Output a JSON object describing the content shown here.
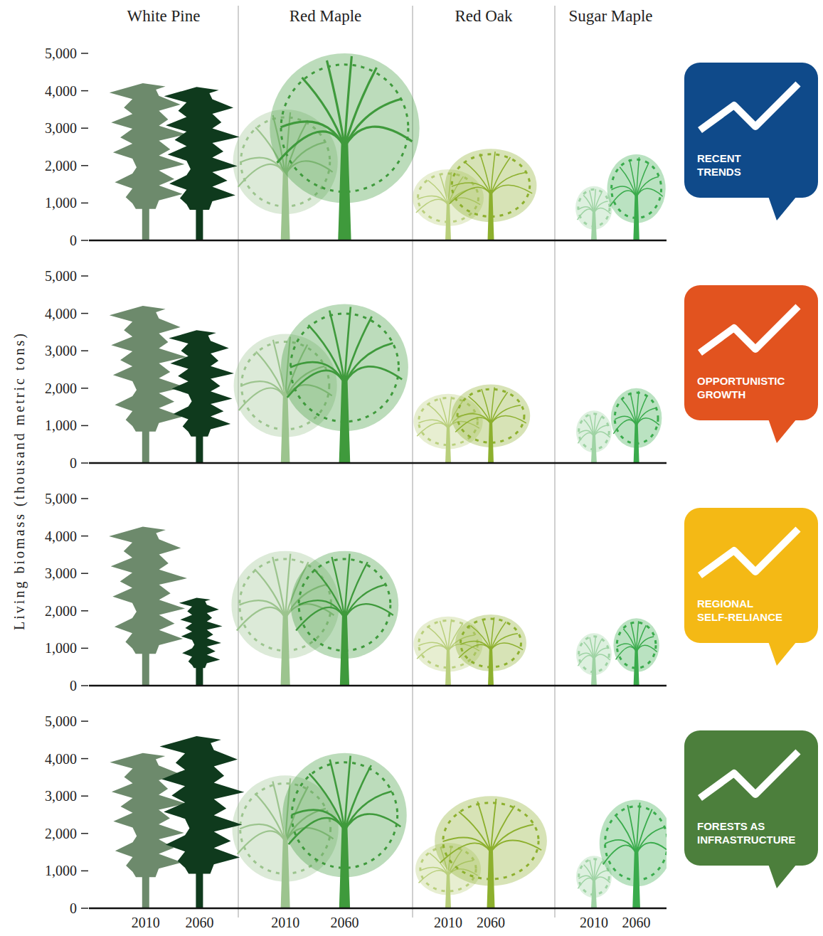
{
  "chart_data": [
    {
      "type": "pictograph",
      "title": "RECENT TRENDS",
      "y_label": "Living biomass (thousand metric tons)",
      "categories": [
        "White Pine",
        "Red Maple",
        "Red Oak",
        "Sugar Maple"
      ],
      "series": [
        {
          "values": [
            4200,
            3500,
            1900,
            1450
          ],
          "colors": [
            "#6d8a6c",
            "#9cc48e",
            "#b9cf7c",
            "#9fd3a4"
          ]
        },
        {
          "values": [
            4100,
            5000,
            2450,
            2300
          ],
          "colors": [
            "#0f3a1d",
            "#3f9a3c",
            "#8db02e",
            "#3aab4c"
          ]
        }
      ],
      "ylim": [
        0,
        5000
      ],
      "yticks": [
        0,
        {
          "value": 1000,
          "label": "1,000"
        },
        {
          "value": 2000,
          "label": "2,000"
        },
        {
          "value": 3000,
          "label": "3,000"
        },
        {
          "value": 4000,
          "label": "4,000"
        },
        {
          "value": 5000,
          "label": "5,000"
        }
      ]
    },
    {
      "type": "pictograph",
      "title": "OPPORTUNISTIC GROWTH",
      "categories": [
        null,
        null,
        null,
        null
      ],
      "series": [
        {
          "values": [
            4200,
            3450,
            1850,
            1400
          ],
          "colors": [
            "#6d8a6c",
            "#9cc48e",
            "#b9cf7c",
            "#9fd3a4"
          ]
        },
        {
          "values": [
            3550,
            4250,
            2100,
            2000
          ],
          "colors": [
            "#0f3a1d",
            "#3f9a3c",
            "#8db02e",
            "#3aab4c"
          ]
        }
      ],
      "ylim": [
        0,
        5000
      ],
      "yticks": [
        0,
        {
          "value": 1000,
          "label": "1,000"
        },
        {
          "value": 2000,
          "label": "2,000"
        },
        {
          "value": 3000,
          "label": "3,000"
        },
        {
          "value": 4000,
          "label": "4,000"
        },
        {
          "value": 5000,
          "label": "5,000"
        }
      ]
    },
    {
      "type": "pictograph",
      "title": "REGIONAL SELF-RELIANCE",
      "categories": [
        null,
        null,
        null,
        null
      ],
      "series": [
        {
          "values": [
            4250,
            3600,
            1850,
            1400
          ],
          "colors": [
            "#6d8a6c",
            "#9cc48e",
            "#b9cf7c",
            "#9fd3a4"
          ]
        },
        {
          "values": [
            2350,
            3600,
            1900,
            1800
          ],
          "colors": [
            "#0f3a1d",
            "#3f9a3c",
            "#8db02e",
            "#3aab4c"
          ]
        }
      ],
      "ylim": [
        0,
        5000
      ],
      "yticks": [
        0,
        {
          "value": 1000,
          "label": "1,000"
        },
        {
          "value": 2000,
          "label": "2,000"
        },
        {
          "value": 3000,
          "label": "3,000"
        },
        {
          "value": 4000,
          "label": "4,000"
        },
        {
          "value": 5000,
          "label": "5,000"
        }
      ]
    },
    {
      "type": "pictograph",
      "title": "FORESTS AS INFRASTRUCTURE",
      "categories": [
        null,
        null,
        null,
        null
      ],
      "series": [
        {
          "name": "2010",
          "values": [
            4150,
            3550,
            1750,
            1400
          ],
          "colors": [
            "#6d8a6c",
            "#9cc48e",
            "#b9cf7c",
            "#9fd3a4"
          ]
        },
        {
          "name": "2060",
          "values": [
            4600,
            4150,
            3000,
            2900
          ],
          "colors": [
            "#0f3a1d",
            "#3f9a3c",
            "#8db02e",
            "#3aab4c"
          ]
        }
      ],
      "ylim": [
        0,
        5000
      ],
      "yticks": [
        0,
        {
          "value": 1000,
          "label": "1,000"
        },
        {
          "value": 2000,
          "label": "2,000"
        },
        {
          "value": 3000,
          "label": "3,000"
        },
        {
          "value": 4000,
          "label": "4,000"
        },
        {
          "value": 5000,
          "label": "5,000"
        }
      ]
    }
  ]
}
